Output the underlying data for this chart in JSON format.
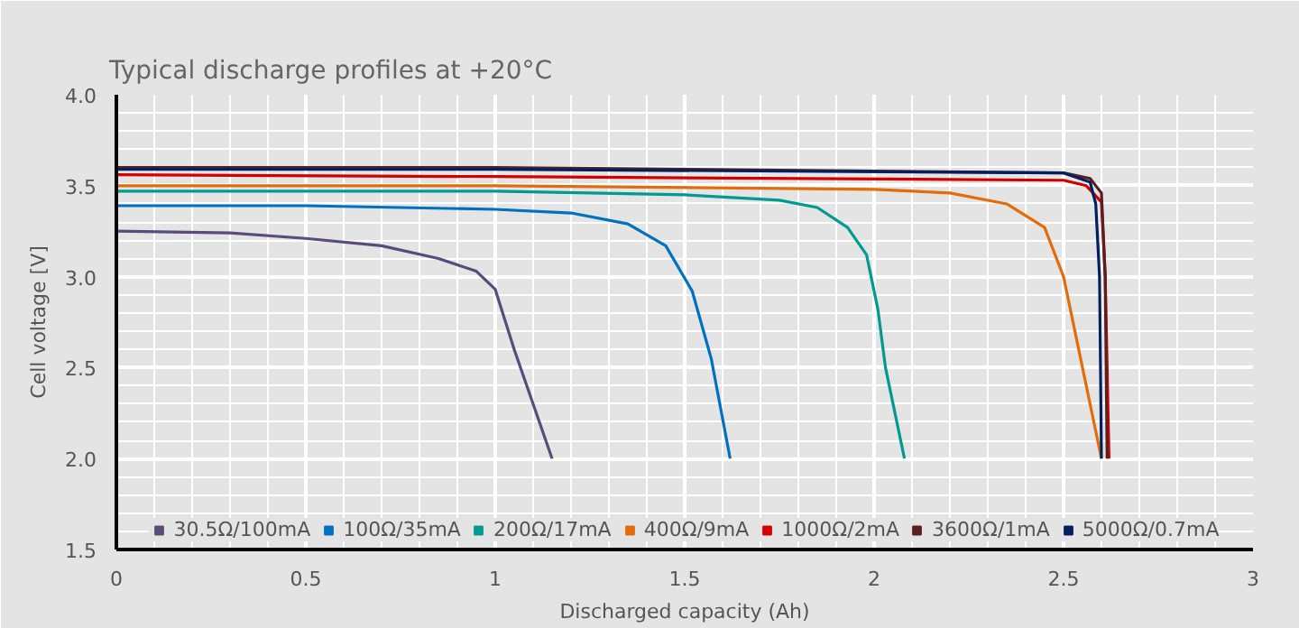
{
  "chart_data": {
    "type": "line",
    "title": "Typical discharge profiles at +20°C",
    "xlabel": "Discharged capacity (Ah)",
    "ylabel": "Cell voltage [V]",
    "xlim": [
      0,
      3
    ],
    "xticks": [
      0,
      0.5,
      1,
      1.5,
      2,
      2.5,
      3
    ],
    "ylim": [
      1.5,
      4.0
    ],
    "yticks": [
      {
        "value": 1.5,
        "label": "1.5"
      },
      {
        "value": 2.0,
        "label": "2.0"
      },
      {
        "value": 2.5,
        "label": "2.5"
      },
      {
        "value": 3.0,
        "label": "3.0"
      },
      {
        "value": 3.5,
        "label": "3.5"
      },
      {
        "value": 4.0,
        "label": "4.0"
      }
    ],
    "grid": true,
    "legend": "bottom",
    "marker": "none",
    "line_style": "solid",
    "series": [
      {
        "name": "30.5Ω/100mA",
        "color": "#5c4a7d",
        "x": [
          0,
          0.3,
          0.5,
          0.7,
          0.85,
          0.95,
          1.0,
          1.05,
          1.1,
          1.15
        ],
        "values": [
          3.25,
          3.24,
          3.21,
          3.17,
          3.1,
          3.03,
          2.93,
          2.6,
          2.3,
          2.0
        ]
      },
      {
        "name": "100Ω/35mA",
        "color": "#0070c0",
        "x": [
          0,
          0.5,
          1.0,
          1.2,
          1.35,
          1.45,
          1.52,
          1.57,
          1.62
        ],
        "values": [
          3.39,
          3.39,
          3.37,
          3.35,
          3.29,
          3.17,
          2.92,
          2.55,
          2.0
        ]
      },
      {
        "name": "200Ω/17mA",
        "color": "#009a93",
        "x": [
          0,
          1.0,
          1.5,
          1.75,
          1.85,
          1.93,
          1.98,
          2.01,
          2.03,
          2.08
        ],
        "values": [
          3.47,
          3.47,
          3.45,
          3.42,
          3.38,
          3.27,
          3.12,
          2.82,
          2.5,
          2.0
        ]
      },
      {
        "name": "400Ω/9mA",
        "color": "#e36c0a",
        "x": [
          0,
          1.0,
          2.0,
          2.2,
          2.35,
          2.45,
          2.5,
          2.53,
          2.57,
          2.6
        ],
        "values": [
          3.5,
          3.5,
          3.48,
          3.46,
          3.4,
          3.27,
          3.0,
          2.7,
          2.3,
          2.0
        ]
      },
      {
        "name": "1000Ω/2mA",
        "color": "#d40000",
        "x": [
          0,
          1.0,
          2.5,
          2.56,
          2.6,
          2.61,
          2.62
        ],
        "values": [
          3.56,
          3.55,
          3.53,
          3.5,
          3.41,
          3.0,
          2.0
        ]
      },
      {
        "name": "3600Ω/1mA",
        "color": "#5c1f1f",
        "x": [
          0,
          1.0,
          2.5,
          2.57,
          2.6,
          2.61,
          2.615
        ],
        "values": [
          3.6,
          3.6,
          3.57,
          3.54,
          3.46,
          3.0,
          2.0
        ]
      },
      {
        "name": "5000Ω/0.7mA",
        "color": "#002060",
        "x": [
          0,
          1.0,
          2.5,
          2.57,
          2.585,
          2.595,
          2.6
        ],
        "values": [
          3.59,
          3.59,
          3.57,
          3.52,
          3.4,
          3.0,
          2.0
        ]
      }
    ]
  }
}
